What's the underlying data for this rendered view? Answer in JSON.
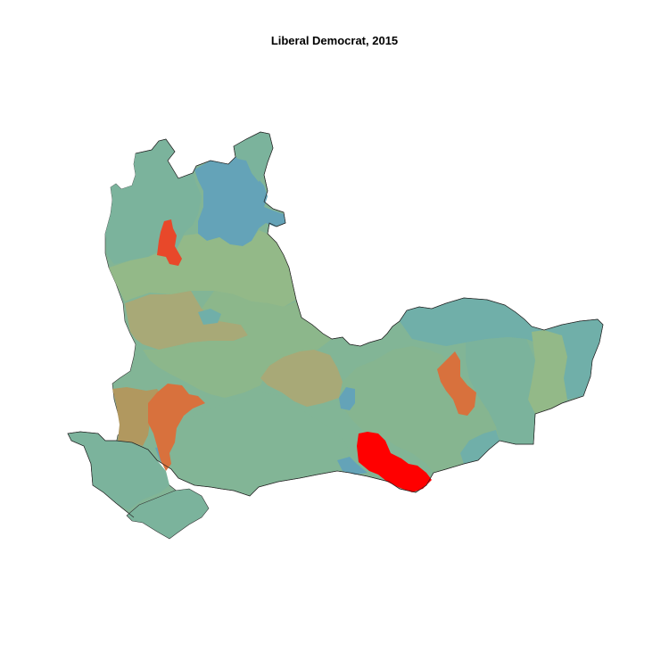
{
  "title": "Liberal Democrat, 2015",
  "colors": {
    "dark_blue": "#64a3b8",
    "teal": "#70afa9",
    "light_teal": "#7bb39c",
    "green_sage": "#93b988",
    "khaki": "#a8a977",
    "tan": "#b1985f",
    "orange": "#d8713d",
    "red_orange": "#e8482a",
    "red": "#ff0000"
  }
}
